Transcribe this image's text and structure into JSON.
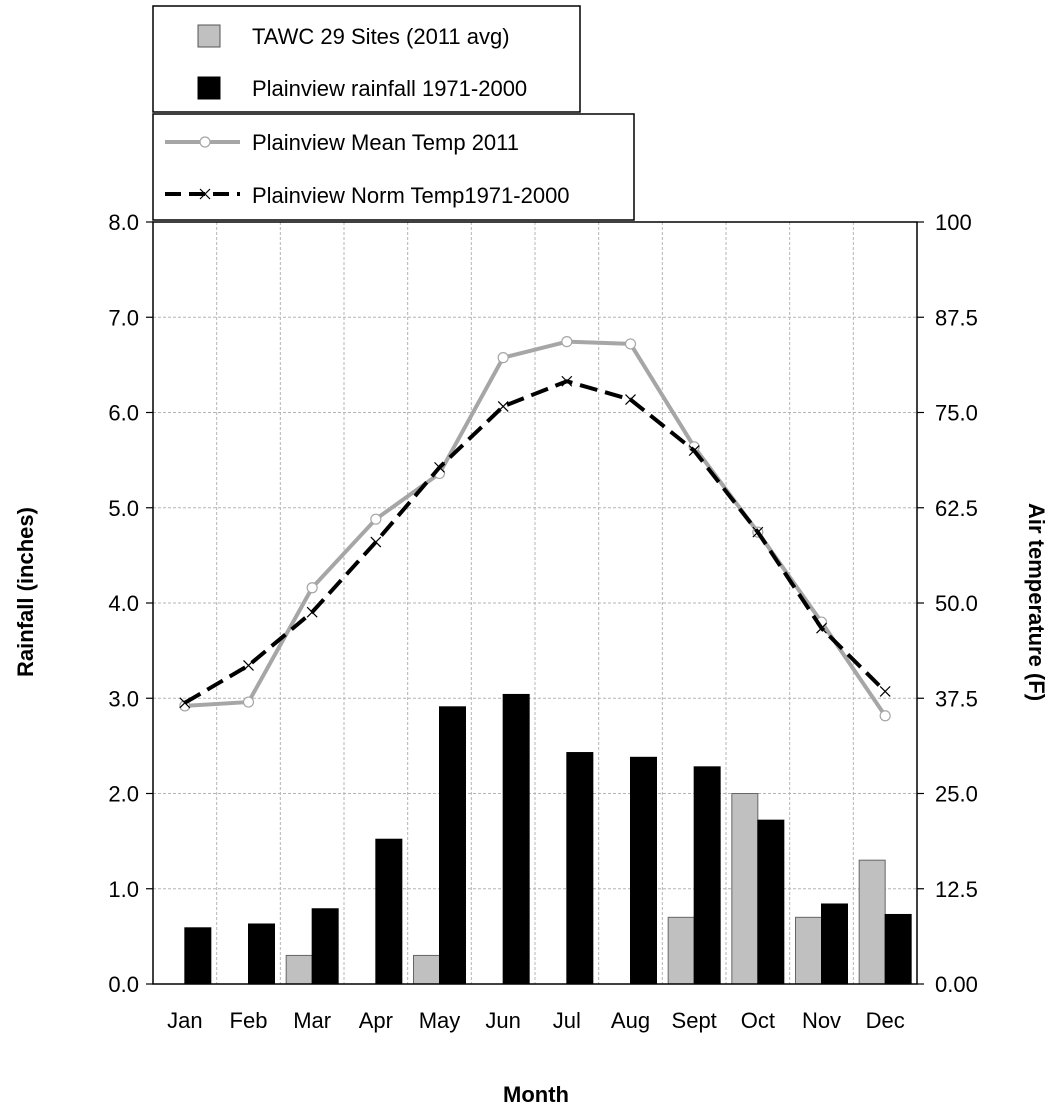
{
  "chart_data": {
    "type": "bar",
    "categories": [
      "Jan",
      "Feb",
      "Mar",
      "Apr",
      "May",
      "Jun",
      "Jul",
      "Aug",
      "Sept",
      "Oct",
      "Nov",
      "Dec"
    ],
    "xlabel": "Month",
    "ylabel_left": "Rainfall (inches)",
    "ylabel_right": "Air temperature (F)",
    "ylim_left": [
      0,
      8
    ],
    "ylim_right": [
      0,
      100
    ],
    "yticks_left": [
      "0.0",
      "1.0",
      "2.0",
      "3.0",
      "4.0",
      "5.0",
      "6.0",
      "7.0",
      "8.0"
    ],
    "yticks_right": [
      "0.00",
      "12.5",
      "25.0",
      "37.5",
      "50.0",
      "62.5",
      "75.0",
      "87.5",
      "100"
    ],
    "grid": true,
    "bar_series": [
      {
        "name": "TAWC 29 Sites (2011 avg)",
        "color": "#c0c0c0",
        "values": [
          0,
          0,
          0.3,
          0,
          0.3,
          0,
          0,
          0,
          0.7,
          2.0,
          0.7,
          1.3
        ]
      },
      {
        "name": "Plainview rainfall 1971-2000",
        "color": "#000000",
        "values": [
          0.59,
          0.63,
          0.79,
          1.52,
          2.91,
          3.04,
          2.43,
          2.38,
          2.28,
          1.72,
          0.84,
          0.73
        ]
      }
    ],
    "line_series": [
      {
        "name": "Plainview Mean Temp 2011",
        "color": "#a6a6a6",
        "marker": "circle",
        "style": "solid",
        "values": [
          36.5,
          37.0,
          52.0,
          61.0,
          67.0,
          82.2,
          84.3,
          84.0,
          70.5,
          59.3,
          47.5,
          35.2
        ]
      },
      {
        "name": "Plainview Norm Temp1971-2000",
        "color": "#000000",
        "marker": "x",
        "style": "dashed",
        "values": [
          36.9,
          41.8,
          48.8,
          58.0,
          67.8,
          75.8,
          79.1,
          76.7,
          70.0,
          59.3,
          46.7,
          38.4
        ]
      }
    ],
    "legend_placement": "top-left, above plot"
  }
}
